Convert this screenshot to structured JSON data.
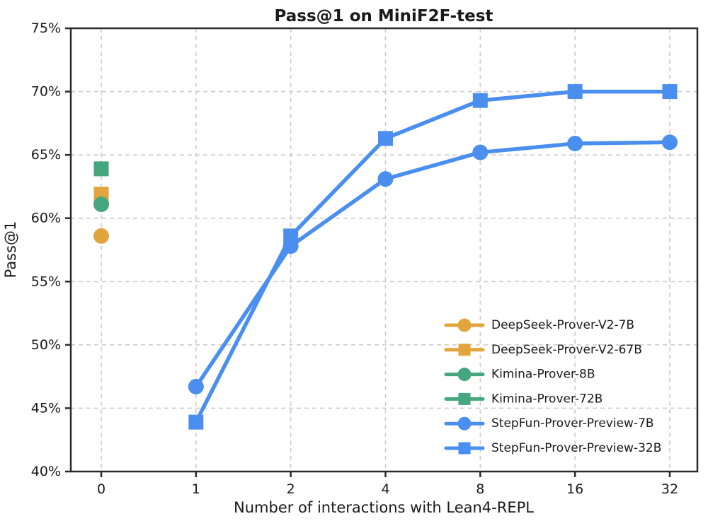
{
  "title": "Pass@1 on MiniF2F-test",
  "chart_data": {
    "type": "line",
    "title": "Pass@1 on MiniF2F-test",
    "xlabel": "Number of interactions with Lean4-REPL",
    "ylabel": "Pass@1",
    "x_categories": [
      "0",
      "1",
      "2",
      "4",
      "8",
      "16",
      "32"
    ],
    "y_ticks": [
      {
        "value": 40,
        "label": "40%"
      },
      {
        "value": 45,
        "label": "45%"
      },
      {
        "value": 50,
        "label": "50%"
      },
      {
        "value": 55,
        "label": "55%"
      },
      {
        "value": 60,
        "label": "60%"
      },
      {
        "value": 65,
        "label": "65%"
      },
      {
        "value": 70,
        "label": "70%"
      },
      {
        "value": 75,
        "label": "75%"
      }
    ],
    "ylim": [
      40,
      75
    ],
    "grid": true,
    "grid_style": "dashed",
    "legend_position": "lower right",
    "colors": {
      "orange": "#E2A43C",
      "green": "#45A77D",
      "blue": "#4A8FF0",
      "grid": "#cccccc",
      "spine": "#2a2a2a",
      "text": "#1a1a1a"
    },
    "series": [
      {
        "name": "DeepSeek-Prover-V2-7B",
        "color": "#E2A43C",
        "marker": "circle",
        "points": [
          {
            "x": "0",
            "y": 58.6
          }
        ]
      },
      {
        "name": "DeepSeek-Prover-V2-67B",
        "color": "#E2A43C",
        "marker": "square",
        "points": [
          {
            "x": "0",
            "y": 61.9
          }
        ]
      },
      {
        "name": "Kimina-Prover-8B",
        "color": "#45A77D",
        "marker": "circle",
        "points": [
          {
            "x": "0",
            "y": 61.1
          }
        ]
      },
      {
        "name": "Kimina-Prover-72B",
        "color": "#45A77D",
        "marker": "square",
        "points": [
          {
            "x": "0",
            "y": 63.9
          }
        ]
      },
      {
        "name": "StepFun-Prover-Preview-7B",
        "color": "#4A8FF0",
        "marker": "circle",
        "points": [
          {
            "x": "1",
            "y": 46.7
          },
          {
            "x": "2",
            "y": 57.8
          },
          {
            "x": "4",
            "y": 63.1
          },
          {
            "x": "8",
            "y": 65.2
          },
          {
            "x": "16",
            "y": 65.9
          },
          {
            "x": "32",
            "y": 66.0
          }
        ]
      },
      {
        "name": "StepFun-Prover-Preview-32B",
        "color": "#4A8FF0",
        "marker": "square",
        "points": [
          {
            "x": "1",
            "y": 43.9
          },
          {
            "x": "2",
            "y": 58.6
          },
          {
            "x": "4",
            "y": 66.3
          },
          {
            "x": "8",
            "y": 69.3
          },
          {
            "x": "16",
            "y": 70.0
          },
          {
            "x": "32",
            "y": 70.0
          }
        ]
      }
    ]
  }
}
